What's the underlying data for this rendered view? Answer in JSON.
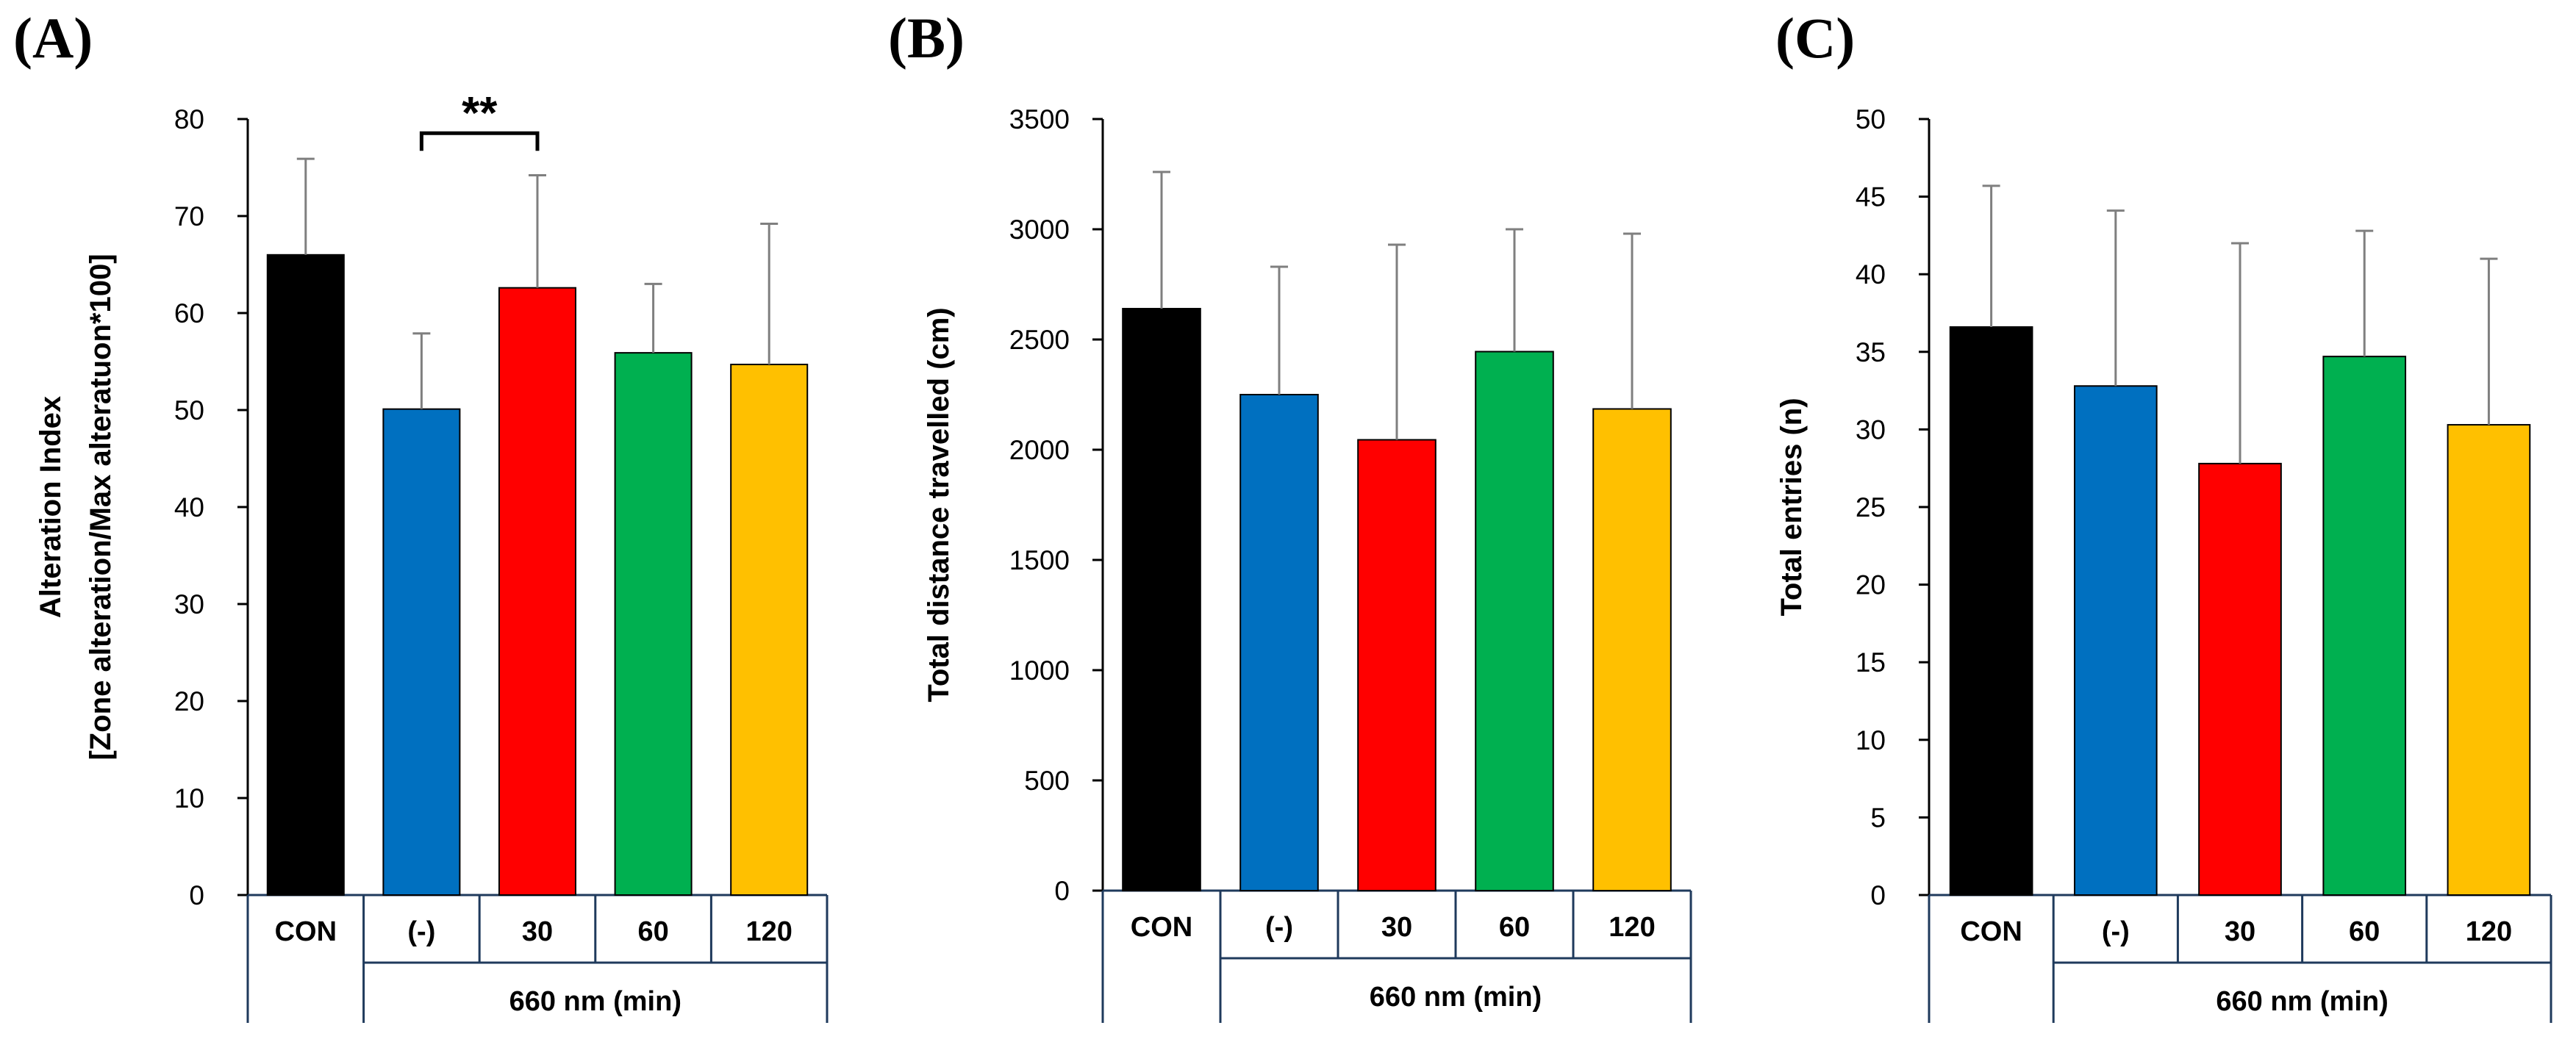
{
  "chart_data": [
    {
      "panel": "(A)",
      "type": "bar",
      "categories": [
        "CON",
        "(-)",
        "30",
        "60",
        "120"
      ],
      "group_label": "660 nm (min)",
      "values": [
        66,
        50.1,
        62.6,
        55.9,
        54.7
      ],
      "errors": [
        9.9,
        7.8,
        11.6,
        7.1,
        14.5
      ],
      "colors": [
        "#000000",
        "#0070C0",
        "#FF0000",
        "#00B050",
        "#FFC000"
      ],
      "ylabel": [
        "Alteration Index",
        "[Zone alteration/Max alteratuon*100]"
      ],
      "ylim": [
        0,
        80
      ],
      "ytick_step": 10,
      "yticks": [
        "0",
        "10",
        "20",
        "30",
        "40",
        "50",
        "60",
        "70",
        "80"
      ],
      "significance": {
        "from": 1,
        "to": 2,
        "label": "**",
        "level": 79
      }
    },
    {
      "panel": "(B)",
      "type": "bar",
      "categories": [
        "CON",
        "(-)",
        "30",
        "60",
        "120"
      ],
      "group_label": "660 nm (min)",
      "values": [
        2640,
        2250,
        2045,
        2445,
        2185
      ],
      "errors": [
        620,
        580,
        885,
        555,
        795
      ],
      "colors": [
        "#000000",
        "#0070C0",
        "#FF0000",
        "#00B050",
        "#FFC000"
      ],
      "ylabel": [
        "Total distance travelled (cm)"
      ],
      "ylim": [
        0,
        3500
      ],
      "ytick_step": 500,
      "yticks": [
        "0",
        "500",
        "1000",
        "1500",
        "2000",
        "2500",
        "3000",
        "3500"
      ]
    },
    {
      "panel": "(C)",
      "type": "bar",
      "categories": [
        "CON",
        "(-)",
        "30",
        "60",
        "120"
      ],
      "group_label": "660 nm (min)",
      "values": [
        36.6,
        32.8,
        27.8,
        34.7,
        30.3
      ],
      "errors": [
        9.1,
        11.3,
        14.2,
        8.1,
        10.7
      ],
      "colors": [
        "#000000",
        "#0070C0",
        "#FF0000",
        "#00B050",
        "#FFC000"
      ],
      "ylabel": [
        "Total entries (n)"
      ],
      "ylim": [
        0,
        50
      ],
      "ytick_step": 5,
      "yticks": [
        "0",
        "5",
        "10",
        "15",
        "20",
        "25",
        "30",
        "35",
        "40",
        "45",
        "50"
      ]
    }
  ]
}
